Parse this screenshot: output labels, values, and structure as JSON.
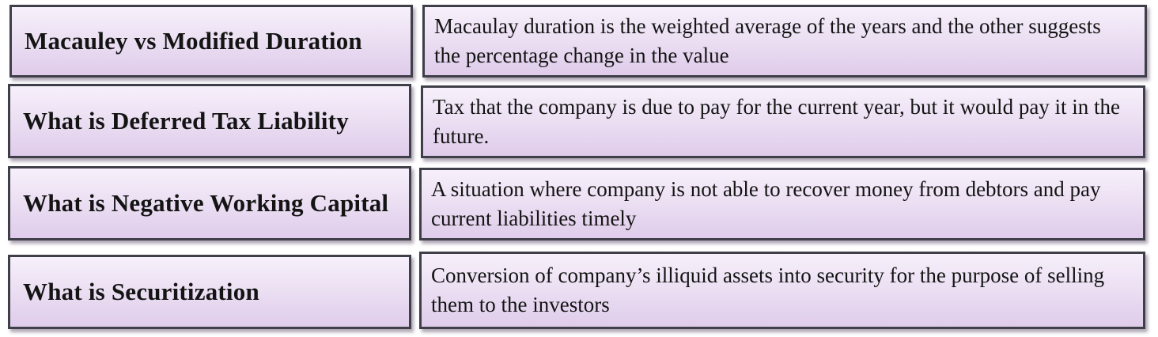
{
  "rows": [
    {
      "term": "Macauley vs Modified Duration",
      "definition": "Macaulay duration is the weighted average of the years and the other suggests the percentage change in the value"
    },
    {
      "term": "What is Deferred Tax Liability",
      "definition": "Tax that the company is due to pay for the current year, but it would pay it in the future."
    },
    {
      "term": "What is Negative Working Capital",
      "definition": "A situation where company is not able to recover money from debtors and pay current liabilities timely"
    },
    {
      "term": "What is Securitization",
      "definition": "Conversion of company’s illiquid assets into security for the purpose of selling them to the investors"
    }
  ],
  "colors": {
    "box_border": "#3f3f4a",
    "box_fill_top": "#f7f0fb",
    "box_fill_bottom": "#dfcceb",
    "text": "#141414"
  }
}
